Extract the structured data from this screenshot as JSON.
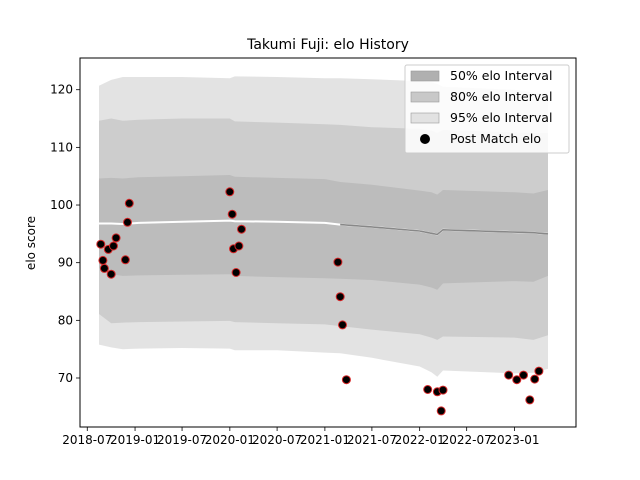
{
  "chart_data": {
    "type": "line",
    "title": "Takumi Fuji: elo History",
    "xlabel": "",
    "ylabel": "elo score",
    "xlim": [
      "2018-06-03",
      "2023-08-26"
    ],
    "ylim": [
      61.5,
      125.5
    ],
    "x_ticks": [
      "2018-07",
      "2019-01",
      "2019-07",
      "2020-01",
      "2020-07",
      "2021-01",
      "2021-07",
      "2022-01",
      "2022-07",
      "2023-01"
    ],
    "y_ticks": [
      70,
      80,
      90,
      100,
      110,
      120
    ],
    "grid": false,
    "legend_position": "top-right",
    "legend": [
      {
        "label": "50% elo Interval",
        "kind": "band",
        "color": "#b0b0b0"
      },
      {
        "label": "80% elo Interval",
        "kind": "band",
        "color": "#c8c8c8"
      },
      {
        "label": "95% elo Interval",
        "kind": "band",
        "color": "#e2e2e2"
      },
      {
        "label": "Post Match elo",
        "kind": "marker",
        "color": "#000000"
      }
    ],
    "bands": {
      "x": [
        "2018-08-15",
        "2018-10-01",
        "2018-11-15",
        "2019-01-15",
        "2019-07-01",
        "2020-01-01",
        "2020-01-20",
        "2020-07-01",
        "2021-01-01",
        "2021-03-01",
        "2021-07-01",
        "2022-01-01",
        "2022-02-15",
        "2022-03-10",
        "2022-04-01",
        "2023-01-01",
        "2023-03-15",
        "2023-05-10"
      ],
      "q95": {
        "upper": [
          120.7,
          121.7,
          122.2,
          122.2,
          122.2,
          122.0,
          122.3,
          122.2,
          122.0,
          122.0,
          121.8,
          121.5,
          121.3,
          121.0,
          120.5,
          120.0,
          119.5,
          119.5
        ],
        "lower": [
          75.8,
          75.3,
          75.0,
          75.1,
          75.2,
          75.1,
          74.8,
          74.8,
          74.4,
          74.3,
          73.5,
          72.0,
          71.0,
          70.2,
          71.3,
          70.8,
          70.9,
          71.6
        ]
      },
      "q80": {
        "upper": [
          114.6,
          115.0,
          114.6,
          114.8,
          115.0,
          115.0,
          114.5,
          114.3,
          114.0,
          113.9,
          113.5,
          113.2,
          112.9,
          112.5,
          113.0,
          112.6,
          112.5,
          112.5
        ],
        "lower": [
          81.1,
          79.5,
          79.6,
          79.7,
          79.8,
          79.9,
          79.7,
          79.5,
          79.3,
          79.0,
          78.4,
          77.6,
          77.0,
          76.6,
          77.2,
          77.0,
          76.6,
          77.4
        ]
      },
      "q50": {
        "upper": [
          104.6,
          104.7,
          104.6,
          104.8,
          105.0,
          105.2,
          104.9,
          104.7,
          104.5,
          104.0,
          103.5,
          102.5,
          102.2,
          101.8,
          102.6,
          102.2,
          102.0,
          102.6
        ],
        "lower": [
          89.1,
          88.0,
          87.7,
          87.8,
          87.9,
          88.0,
          87.7,
          87.5,
          87.3,
          87.2,
          87.0,
          86.2,
          85.7,
          85.3,
          86.4,
          86.8,
          86.7,
          87.7
        ]
      },
      "mean": [
        96.8,
        96.8,
        96.7,
        96.9,
        97.1,
        97.3,
        97.2,
        97.1,
        96.9,
        96.6,
        96.2,
        95.5,
        95.1,
        94.9,
        95.7,
        95.3,
        95.2,
        95.0
      ]
    },
    "post_match_elo": [
      {
        "x": "2018-08-22",
        "y": 93.2
      },
      {
        "x": "2018-08-30",
        "y": 90.4
      },
      {
        "x": "2018-09-05",
        "y": 89.0
      },
      {
        "x": "2018-09-20",
        "y": 92.3
      },
      {
        "x": "2018-10-01",
        "y": 88.0
      },
      {
        "x": "2018-10-10",
        "y": 92.9
      },
      {
        "x": "2018-10-20",
        "y": 94.3
      },
      {
        "x": "2018-11-25",
        "y": 90.5
      },
      {
        "x": "2018-12-03",
        "y": 97.0
      },
      {
        "x": "2018-12-10",
        "y": 100.3
      },
      {
        "x": "2020-01-01",
        "y": 102.3
      },
      {
        "x": "2020-01-10",
        "y": 98.4
      },
      {
        "x": "2020-01-15",
        "y": 92.4
      },
      {
        "x": "2020-01-25",
        "y": 88.3
      },
      {
        "x": "2020-02-05",
        "y": 92.9
      },
      {
        "x": "2020-02-15",
        "y": 95.8
      },
      {
        "x": "2021-02-20",
        "y": 90.1
      },
      {
        "x": "2021-03-01",
        "y": 84.1
      },
      {
        "x": "2021-03-10",
        "y": 79.2
      },
      {
        "x": "2021-03-25",
        "y": 69.7
      },
      {
        "x": "2022-02-01",
        "y": 68.0
      },
      {
        "x": "2022-03-10",
        "y": 67.6
      },
      {
        "x": "2022-03-25",
        "y": 64.3
      },
      {
        "x": "2022-04-01",
        "y": 67.9
      },
      {
        "x": "2022-12-10",
        "y": 70.5
      },
      {
        "x": "2023-01-10",
        "y": 69.7
      },
      {
        "x": "2023-02-05",
        "y": 70.5
      },
      {
        "x": "2023-03-01",
        "y": 66.2
      },
      {
        "x": "2023-03-20",
        "y": 69.8
      },
      {
        "x": "2023-04-05",
        "y": 71.2
      }
    ]
  }
}
